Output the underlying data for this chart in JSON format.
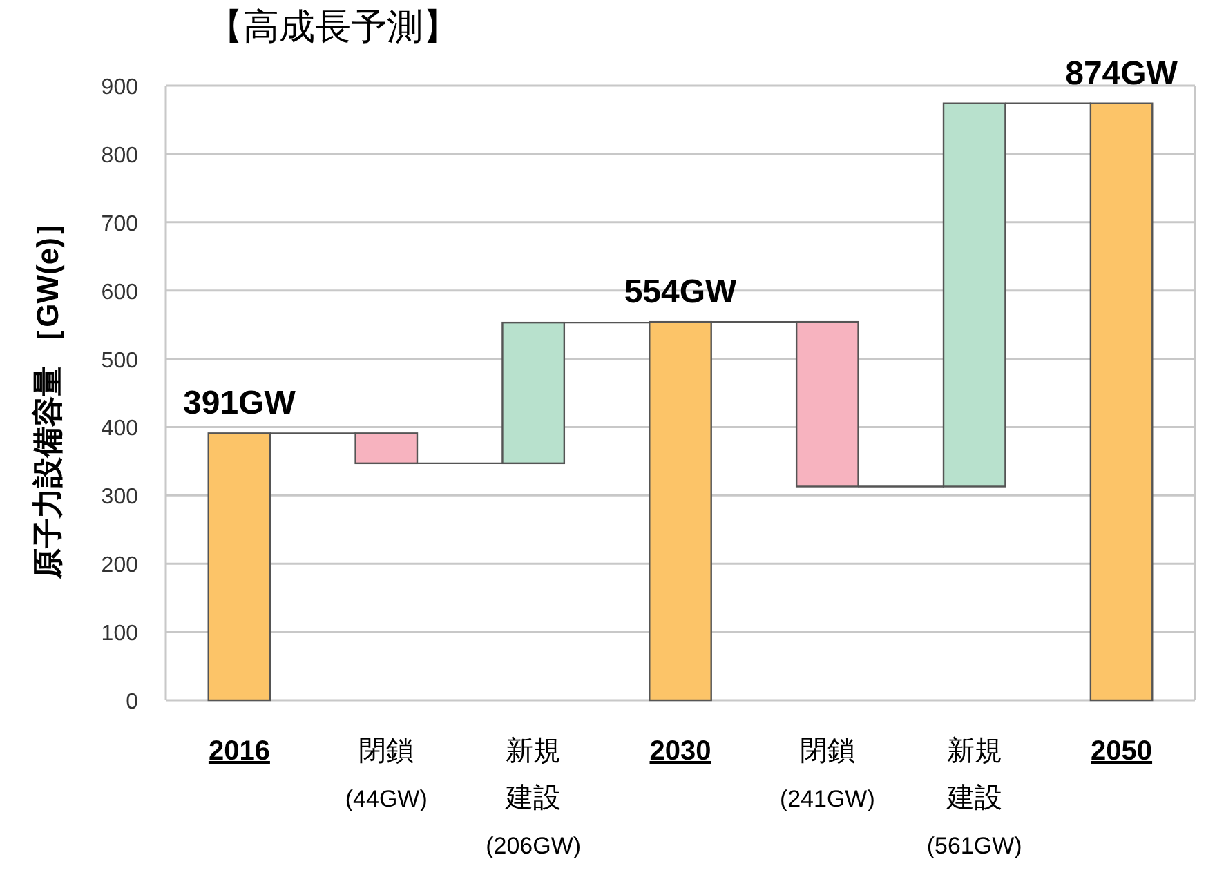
{
  "chart_data": {
    "type": "bar",
    "title": "【高成長予測】",
    "ylabel": "原子力設備容量 ［GW(e)］",
    "categories": [
      "2016",
      "閉鎖\n(44GW)",
      "新規建設\n(206GW)",
      "2030",
      "閉鎖\n(241GW)",
      "新規建設\n(561GW)",
      "2050"
    ],
    "values": [
      391,
      -44,
      206,
      554,
      -241,
      561,
      874
    ],
    "base": [
      null,
      391,
      347,
      null,
      554,
      313,
      null
    ],
    "colors": [
      "#fcc468",
      "#f7b3bf",
      "#b8e1cd",
      "#fcc468",
      "#f7b3bf",
      "#b8e1cd",
      "#fcc468"
    ],
    "value_labels": [
      "391GW",
      null,
      null,
      "554GW",
      null,
      null,
      "874GW"
    ],
    "ylim": [
      0,
      900
    ],
    "yticks": [
      0,
      100,
      200,
      300,
      400,
      500,
      600,
      700,
      800,
      900
    ],
    "grid": "y"
  }
}
